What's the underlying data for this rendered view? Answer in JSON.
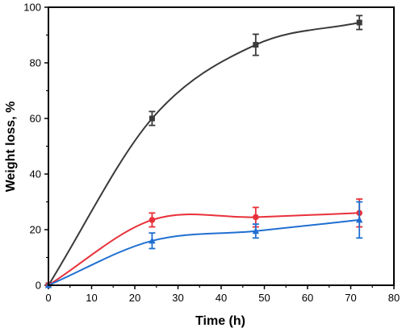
{
  "chart_data": {
    "type": "line",
    "xlabel": "Time (h)",
    "ylabel": "Weight loss, %",
    "xlim": [
      0,
      80
    ],
    "ylim": [
      0,
      100
    ],
    "x_ticks": [
      0,
      10,
      20,
      30,
      40,
      50,
      60,
      70,
      80
    ],
    "y_ticks": [
      0,
      20,
      40,
      60,
      80,
      100
    ],
    "grid": false,
    "series": [
      {
        "color": "#3a3a3a",
        "marker": "square",
        "x": [
          0,
          24,
          48,
          72
        ],
        "y": [
          0,
          60.0,
          86.5,
          94.5
        ],
        "error": [
          0,
          2.5,
          3.8,
          2.5
        ]
      },
      {
        "color": "#e8313a",
        "marker": "circle",
        "x": [
          0,
          24,
          48,
          72
        ],
        "y": [
          0,
          23.5,
          24.5,
          26.0
        ],
        "error": [
          0,
          2.5,
          3.5,
          5.0
        ]
      },
      {
        "color": "#1f6fd1",
        "marker": "triangle",
        "x": [
          0,
          24,
          48,
          72
        ],
        "y": [
          0,
          16.0,
          19.5,
          23.5
        ],
        "error": [
          0,
          2.8,
          2.5,
          6.5
        ]
      }
    ]
  }
}
